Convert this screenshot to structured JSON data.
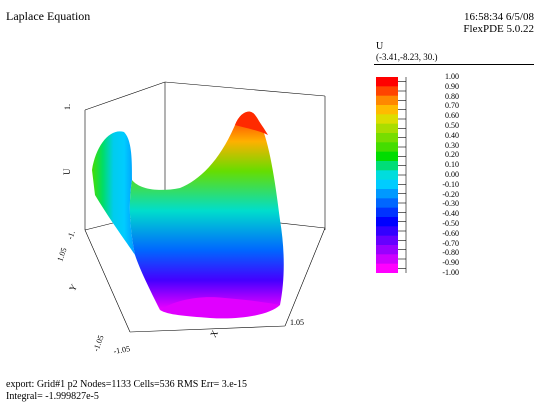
{
  "title": "Laplace Equation",
  "timestamp": "16:58:34 6/5/08",
  "program": "FlexPDE 5.0.22",
  "variable": "U",
  "view_point": "(-3.41,-8.23, 30.)",
  "legend_values": [
    "1.00",
    "0.90",
    "0.80",
    "0.70",
    "0.60",
    "0.50",
    "0.40",
    "0.30",
    "0.20",
    "0.10",
    "0.00",
    "-0.10",
    "-0.20",
    "-0.30",
    "-0.40",
    "-0.50",
    "-0.60",
    "-0.70",
    "-0.80",
    "-0.90",
    "-1.00"
  ],
  "legend_colors": [
    "#ff0000",
    "#ff4400",
    "#ff8800",
    "#ffbb00",
    "#dddd00",
    "#aadd00",
    "#77dd00",
    "#44dd00",
    "#00dd00",
    "#00dd77",
    "#00dddd",
    "#00ccff",
    "#0099ff",
    "#0066ff",
    "#0033ff",
    "#0000ff",
    "#3300ff",
    "#6600ff",
    "#9900ff",
    "#cc00ff",
    "#ff00ff"
  ],
  "axes": {
    "z_label": "U",
    "z_tick_top": "1.",
    "z_tick_bottom": "-1.",
    "y_label": "Y",
    "y_tick_far": "1.05",
    "y_tick_near": "-1.05",
    "x_label": "X",
    "x_tick_left": "-1.05",
    "x_tick_right": "1.05"
  },
  "footer": {
    "export_line": "export:  Grid#1  p2  Nodes=1133 Cells=536 RMS Err= 3.e-15",
    "integral_line": "Integral= -1.999827e-5"
  }
}
